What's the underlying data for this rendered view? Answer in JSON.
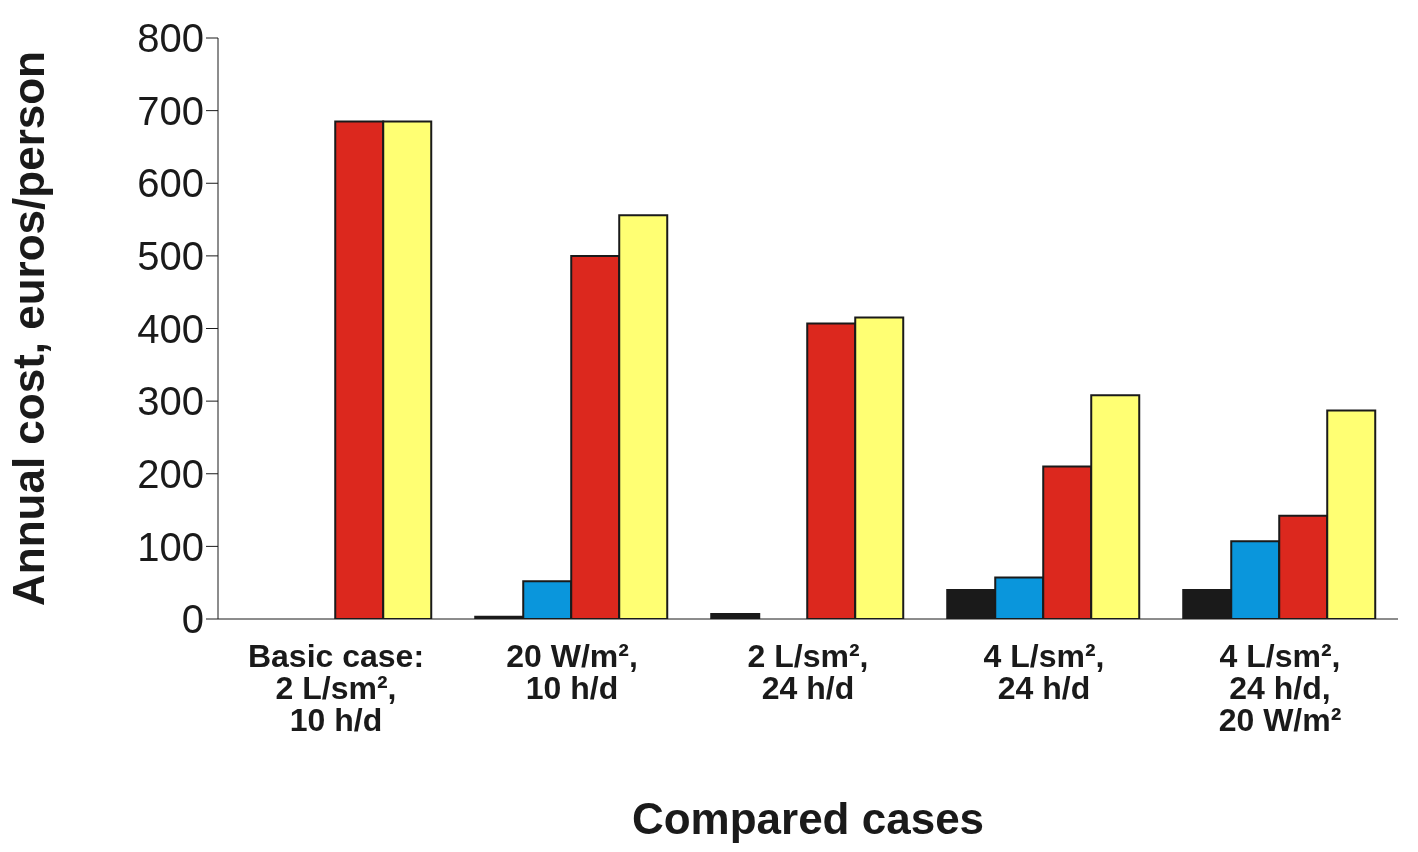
{
  "chart_data": {
    "type": "bar",
    "xlabel": "Compared cases",
    "ylabel": "Annual cost, euros/person",
    "categories": [
      "Basic case:\n2 L/sm²,\n10 h/d",
      "20 W/m²,\n10 h/d",
      "2 L/sm²,\n24 h/d",
      "4 L/sm²,\n24 h/d",
      "4 L/sm²,\n24 h/d,\n20 W/m²"
    ],
    "series": [
      {
        "color": "#1a1a1a",
        "values": [
          null,
          3,
          7,
          40,
          40
        ]
      },
      {
        "color": "#0a96dc",
        "values": [
          null,
          52,
          null,
          57,
          107
        ]
      },
      {
        "color": "#dc281e",
        "values": [
          685,
          500,
          407,
          210,
          142
        ]
      },
      {
        "color": "#ffff73",
        "values": [
          685,
          556,
          415,
          308,
          287
        ]
      }
    ],
    "ylim": [
      0,
      800
    ],
    "yticks": [
      0,
      100,
      200,
      300,
      400,
      500,
      600,
      700,
      800
    ],
    "grid": false,
    "legend": false
  }
}
